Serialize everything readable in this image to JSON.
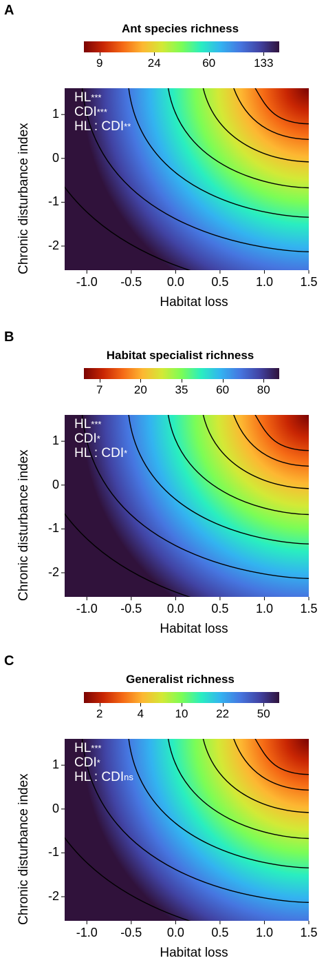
{
  "chart_data": [
    {
      "type": "heatmap",
      "panel_label": "A",
      "title": "Ant species richness",
      "colorbar_ticks": [
        "9",
        "24",
        "60",
        "133"
      ],
      "xlabel": "Habitat loss",
      "ylabel": "Chronic disturbance index",
      "x_ticks": [
        "-1.0",
        "-0.5",
        "0.0",
        "0.5",
        "1.0",
        "1.5"
      ],
      "y_ticks": [
        "1",
        "0",
        "-1",
        "-2"
      ],
      "xlim": [
        -1.25,
        1.5
      ],
      "ylim": [
        -2.55,
        1.6
      ],
      "annotations": [
        {
          "text": "HL",
          "sup": "***"
        },
        {
          "text": "CDI",
          "sup": "***"
        },
        {
          "text": "HL : CDI",
          "sup": "**"
        }
      ]
    },
    {
      "type": "heatmap",
      "panel_label": "B",
      "title": "Habitat specialist richness",
      "colorbar_ticks": [
        "7",
        "20",
        "35",
        "60",
        "80"
      ],
      "xlabel": "Habitat loss",
      "ylabel": "Chronic disturbance index",
      "x_ticks": [
        "-1.0",
        "-0.5",
        "0.0",
        "0.5",
        "1.0",
        "1.5"
      ],
      "y_ticks": [
        "1",
        "0",
        "-1",
        "-2"
      ],
      "xlim": [
        -1.25,
        1.5
      ],
      "ylim": [
        -2.55,
        1.6
      ],
      "annotations": [
        {
          "text": "HL",
          "sup": "***"
        },
        {
          "text": "CDI",
          "sup": "*"
        },
        {
          "text": "HL : CDI",
          "sup": "*"
        }
      ]
    },
    {
      "type": "heatmap",
      "panel_label": "C",
      "title": "Generalist richness",
      "colorbar_ticks": [
        "2",
        "4",
        "10",
        "22",
        "50"
      ],
      "xlabel": "Habitat loss",
      "ylabel": "Chronic disturbance index",
      "x_ticks": [
        "-1.0",
        "-0.5",
        "0.0",
        "0.5",
        "1.0",
        "1.5"
      ],
      "y_ticks": [
        "1",
        "0",
        "-1",
        "-2"
      ],
      "xlim": [
        -1.25,
        1.5
      ],
      "ylim": [
        -2.55,
        1.6
      ],
      "annotations": [
        {
          "text": "HL",
          "sup": "***"
        },
        {
          "text": "CDI",
          "sup": "*"
        },
        {
          "text": "HL : CDI",
          "sup": "ns"
        }
      ]
    }
  ],
  "palette": [
    "#7a0403",
    "#c92603",
    "#f56a15",
    "#fdb732",
    "#d3e936",
    "#7bfd56",
    "#29eec0",
    "#33b3f0",
    "#4676e0",
    "#4143a3",
    "#30123b"
  ]
}
